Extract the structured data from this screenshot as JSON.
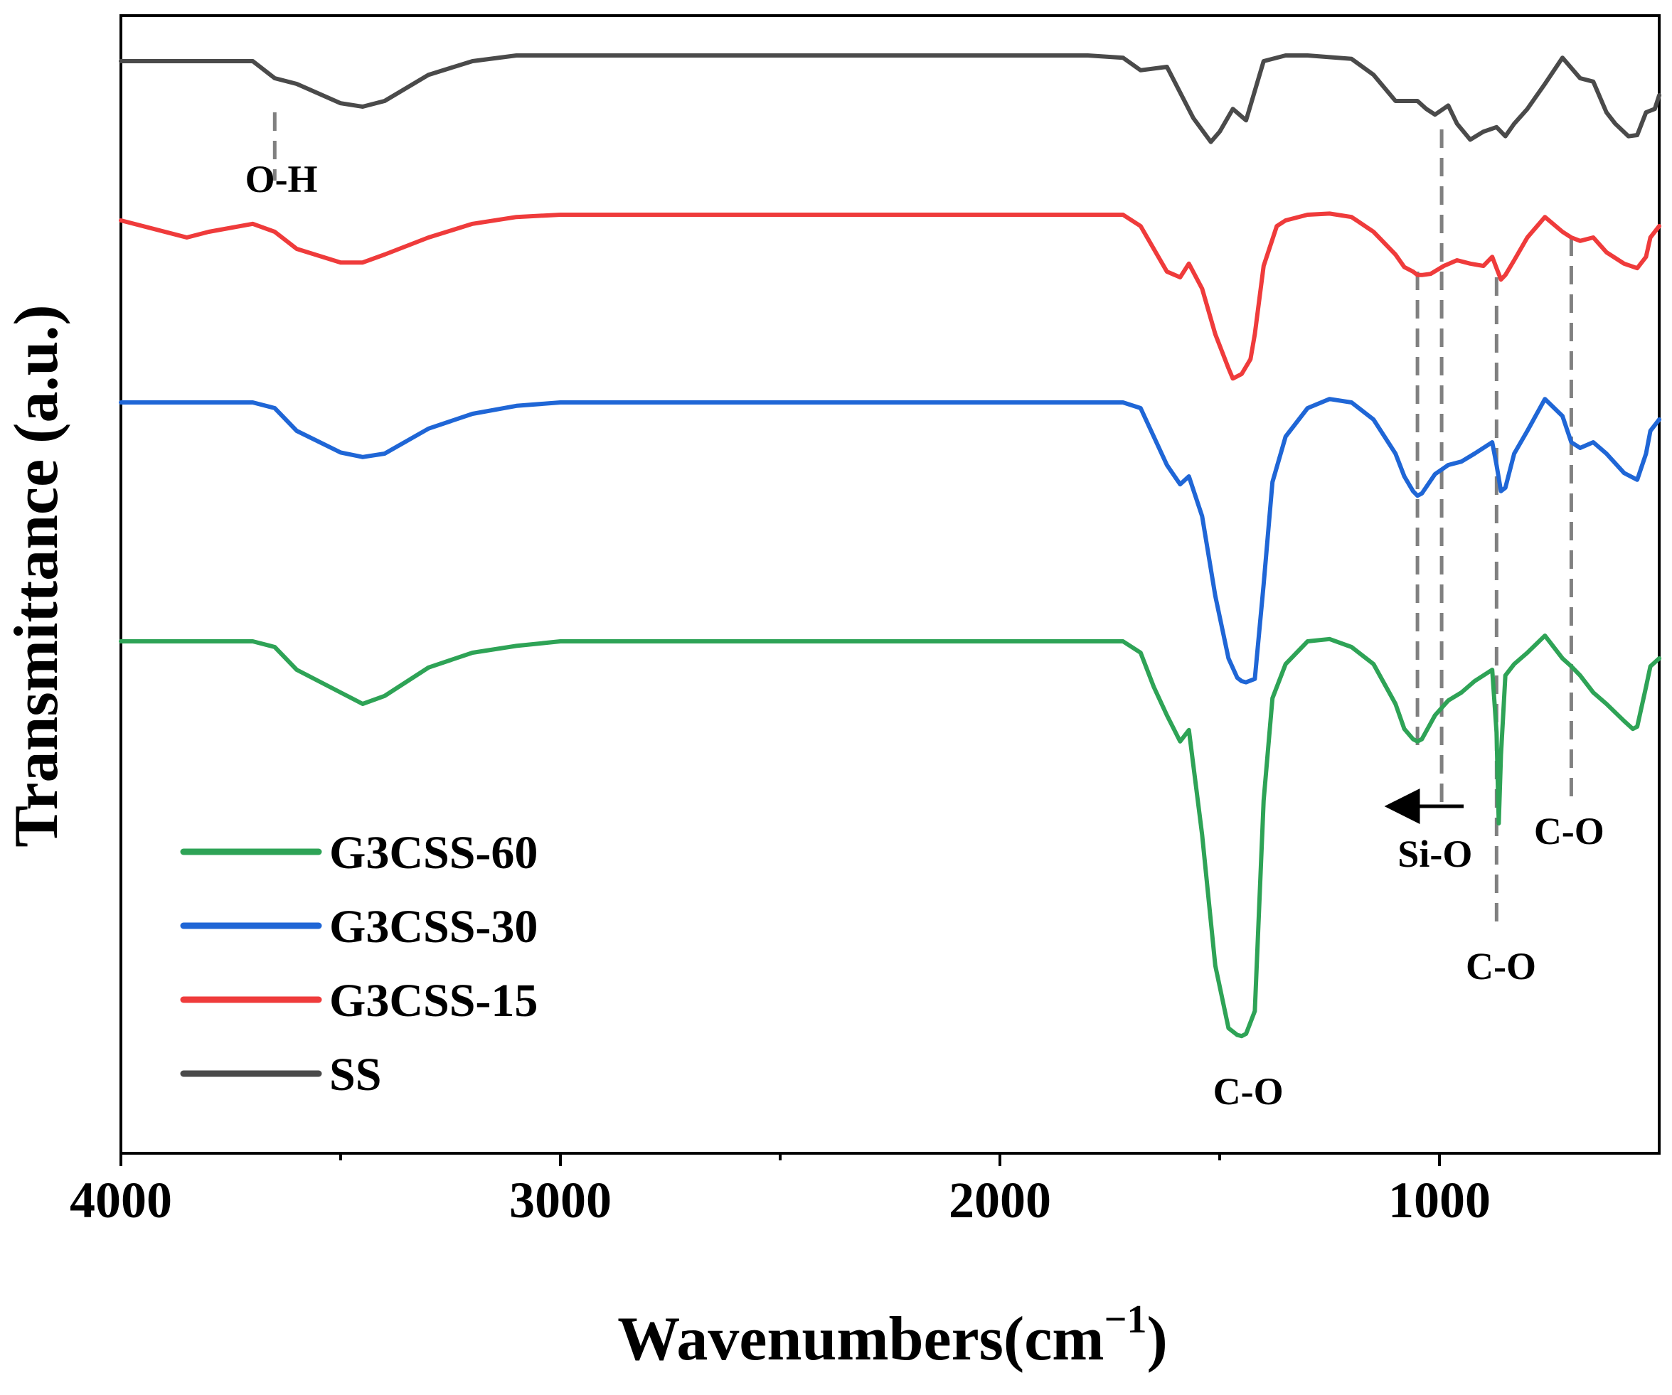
{
  "chart_data": {
    "type": "line",
    "title": "",
    "xlabel": "Wavenumbers(cm",
    "xlabel_sup": "−1",
    "xlabel_close": ")",
    "ylabel": "Transmittance (a.u.)",
    "xlim": [
      4000,
      500
    ],
    "ylim": [
      0,
      100
    ],
    "x_ticks": [
      4000,
      3000,
      2000,
      1000
    ],
    "x_tick_labels": [
      "4000",
      "3000",
      "2000",
      "1000"
    ],
    "x_minor_ticks": [
      3500,
      2500,
      1500
    ],
    "y_ticks_visible": false,
    "grid": false,
    "legend_position": "bottom-left",
    "legend_order": [
      "G3CSS-60",
      "G3CSS-30",
      "G3CSS-15",
      "SS"
    ],
    "series": [
      {
        "name": "SS",
        "color": "#4a4a4a",
        "x": [
          4000,
          3700,
          3650,
          3600,
          3500,
          3450,
          3400,
          3300,
          3200,
          3100,
          3000,
          2500,
          2000,
          1800,
          1720,
          1680,
          1620,
          1560,
          1520,
          1500,
          1470,
          1440,
          1400,
          1350,
          1300,
          1200,
          1150,
          1100,
          1050,
          1030,
          1010,
          980,
          960,
          930,
          900,
          870,
          850,
          830,
          800,
          760,
          720,
          680,
          650,
          620,
          600,
          570,
          550,
          530,
          510,
          500
        ],
        "values": [
          96,
          96,
          94.5,
          94,
          92.3,
          92,
          92.5,
          94.8,
          96,
          96.5,
          96.5,
          96.5,
          96.5,
          96.5,
          96.3,
          95.2,
          95.5,
          91,
          88.9,
          89.8,
          91.8,
          90.8,
          96,
          96.5,
          96.5,
          96.2,
          94.8,
          92.5,
          92.5,
          91.8,
          91.3,
          92.1,
          90.5,
          89.1,
          89.8,
          90.2,
          89.4,
          90.5,
          91.8,
          94,
          96.3,
          94.5,
          94.2,
          91.5,
          90.5,
          89.4,
          89.5,
          91.5,
          91.8,
          93
        ]
      },
      {
        "name": "G3CSS-15",
        "color": "#ef3b3b",
        "x": [
          4000,
          3850,
          3800,
          3700,
          3650,
          3600,
          3500,
          3450,
          3400,
          3300,
          3200,
          3100,
          3000,
          2500,
          2000,
          1800,
          1720,
          1680,
          1620,
          1590,
          1570,
          1540,
          1510,
          1480,
          1470,
          1450,
          1430,
          1420,
          1400,
          1370,
          1350,
          1300,
          1250,
          1200,
          1150,
          1100,
          1080,
          1060,
          1050,
          1040,
          1020,
          990,
          960,
          930,
          900,
          880,
          870,
          860,
          850,
          830,
          800,
          760,
          720,
          700,
          680,
          650,
          620,
          580,
          550,
          530,
          520,
          500
        ],
        "values": [
          82,
          80.5,
          81,
          81.7,
          81,
          79.5,
          78.3,
          78.3,
          79,
          80.5,
          81.7,
          82.3,
          82.5,
          82.5,
          82.5,
          82.5,
          82.5,
          81.5,
          77.5,
          77,
          78.2,
          76,
          72,
          69,
          68.1,
          68.5,
          69.8,
          72,
          78,
          81.5,
          82,
          82.5,
          82.6,
          82.3,
          81,
          79,
          77.9,
          77.5,
          77.2,
          77.2,
          77.3,
          78,
          78.5,
          78.2,
          78,
          78.8,
          77.8,
          76.8,
          77.2,
          78.5,
          80.5,
          82.3,
          81,
          80.5,
          80.2,
          80.5,
          79.2,
          78.2,
          77.8,
          78.8,
          80.5,
          81.5
        ]
      },
      {
        "name": "G3CSS-30",
        "color": "#1f66d6",
        "x": [
          4000,
          3700,
          3650,
          3600,
          3500,
          3450,
          3400,
          3300,
          3200,
          3100,
          3000,
          2500,
          2000,
          1800,
          1720,
          1680,
          1650,
          1620,
          1590,
          1570,
          1540,
          1510,
          1480,
          1460,
          1450,
          1440,
          1420,
          1400,
          1380,
          1350,
          1300,
          1250,
          1200,
          1150,
          1100,
          1080,
          1060,
          1050,
          1040,
          1010,
          980,
          950,
          920,
          900,
          880,
          870,
          860,
          850,
          830,
          800,
          760,
          720,
          700,
          680,
          650,
          620,
          580,
          550,
          530,
          520,
          500
        ],
        "values": [
          66,
          66,
          65.5,
          63.5,
          61.6,
          61.2,
          61.5,
          63.7,
          65,
          65.7,
          66,
          66,
          66,
          66,
          66,
          65.5,
          63,
          60.5,
          58.8,
          59.5,
          56,
          49,
          43.5,
          41.8,
          41.5,
          41.4,
          41.7,
          50,
          59,
          63,
          65.5,
          66.3,
          66,
          64.5,
          61.5,
          59.5,
          58.2,
          57.8,
          58,
          59.7,
          60.5,
          60.8,
          61.5,
          62,
          62.5,
          60.5,
          58.2,
          58.5,
          61.5,
          63.5,
          66.3,
          64.8,
          62.5,
          62,
          62.5,
          61.5,
          59.8,
          59.2,
          61.5,
          63.5,
          64.5
        ]
      },
      {
        "name": "G3CSS-60",
        "color": "#2ea356",
        "x": [
          4000,
          3700,
          3650,
          3600,
          3500,
          3450,
          3400,
          3300,
          3200,
          3100,
          3000,
          2500,
          2000,
          1800,
          1720,
          1680,
          1650,
          1620,
          1590,
          1570,
          1540,
          1510,
          1480,
          1460,
          1450,
          1440,
          1420,
          1400,
          1380,
          1350,
          1300,
          1250,
          1200,
          1150,
          1100,
          1080,
          1060,
          1050,
          1040,
          1010,
          980,
          950,
          920,
          900,
          880,
          870,
          865,
          860,
          850,
          830,
          800,
          760,
          720,
          700,
          680,
          650,
          620,
          580,
          560,
          550,
          530,
          520,
          500
        ],
        "values": [
          45,
          45,
          44.5,
          42.5,
          40.5,
          39.5,
          40.2,
          42.7,
          44,
          44.6,
          45,
          45,
          45,
          45,
          45,
          44,
          41,
          38.5,
          36.2,
          37.2,
          28,
          16.5,
          11,
          10.4,
          10.3,
          10.5,
          12.5,
          31,
          40,
          43,
          45,
          45.2,
          44.5,
          43,
          39.5,
          37.3,
          36.4,
          36.2,
          36.4,
          38.5,
          39.8,
          40.5,
          41.5,
          42,
          42.5,
          37,
          29,
          35,
          42,
          43,
          44,
          45.5,
          43.5,
          42.8,
          42,
          40.5,
          39.5,
          38,
          37.3,
          37.5,
          41,
          42.8,
          43.5
        ]
      }
    ],
    "reference_lines": [
      {
        "x": 3650,
        "y_from": 91.5,
        "y_to": 85.5
      },
      {
        "x": 1050,
        "y_from": 77.5,
        "y_to": 35.5
      },
      {
        "x": 995,
        "y_from": 90,
        "y_to": 30.5
      },
      {
        "x": 870,
        "y_from": 77,
        "y_to": 20
      },
      {
        "x": 700,
        "y_from": 80.5,
        "y_to": 30.5
      }
    ],
    "annotations": [
      {
        "id": "oh",
        "text": "O-H",
        "x": 3635,
        "y": 84.5
      },
      {
        "id": "co-main",
        "text": "C-O",
        "x": 1435,
        "y": 4.3
      },
      {
        "id": "sio",
        "text": "Si-O",
        "x": 1010,
        "y": 25.2
      },
      {
        "id": "co-870",
        "text": "C-O",
        "x": 860,
        "y": 15.3
      },
      {
        "id": "co-700",
        "text": "C-O",
        "x": 705,
        "y": 27.2
      }
    ],
    "shift_arrow": {
      "from_x": 945,
      "to_x": 1080,
      "y": 30.5
    }
  }
}
